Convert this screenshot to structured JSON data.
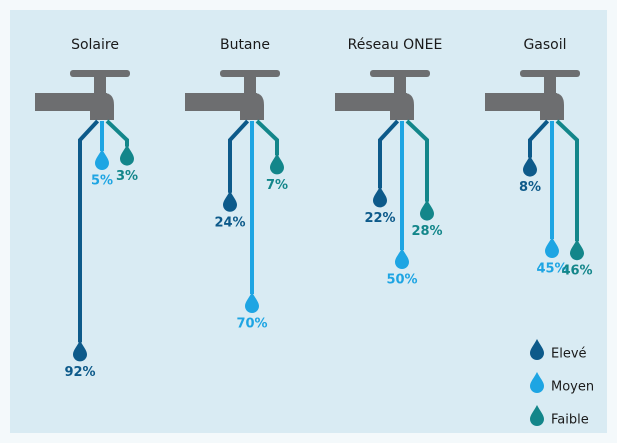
{
  "chart_data": {
    "type": "bar",
    "categories": [
      "Solaire",
      "Butane",
      "Réseau ONEE",
      "Gasoil"
    ],
    "series": [
      {
        "name": "Elevé",
        "color": "#0d5a8a",
        "values": [
          92,
          24,
          22,
          8
        ],
        "value_labels": [
          "92%",
          "24%",
          "22%",
          "8%"
        ]
      },
      {
        "name": "Moyen",
        "color": "#1ea5e3",
        "values": [
          5,
          70,
          50,
          45
        ],
        "value_labels": [
          "5%",
          "70%",
          "50%",
          "45%"
        ]
      },
      {
        "name": "Faible",
        "color": "#13868a",
        "values": [
          3,
          7,
          28,
          46
        ],
        "value_labels": [
          "3%",
          "7%",
          "28%",
          "46%"
        ]
      }
    ],
    "legend": "bottom-right"
  }
}
